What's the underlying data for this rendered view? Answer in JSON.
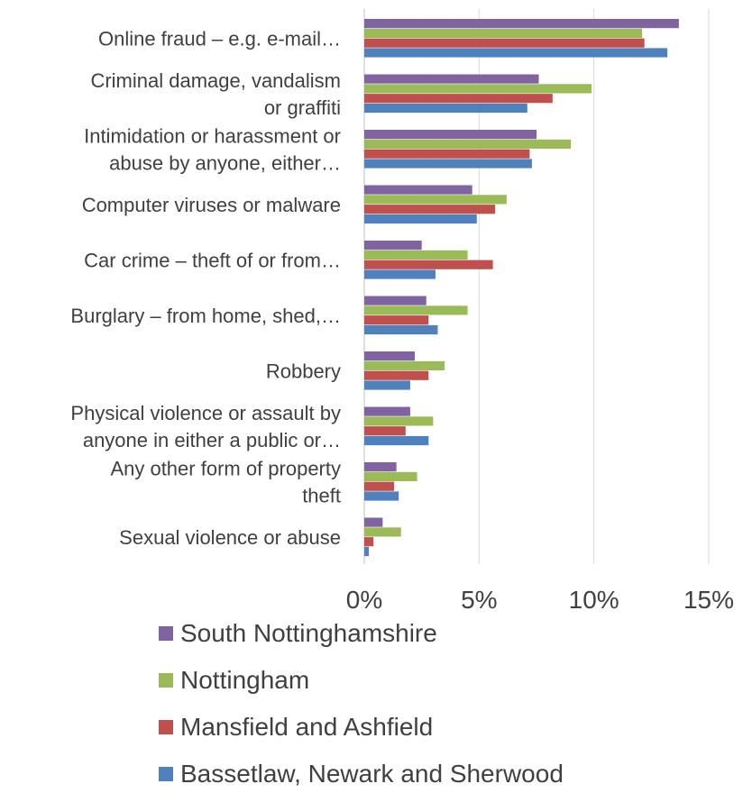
{
  "chart_data": {
    "type": "bar",
    "orientation": "horizontal",
    "categories": [
      [
        "Online fraud – e.g. e-mail…"
      ],
      [
        "Criminal damage, vandalism",
        "or graffiti"
      ],
      [
        "Intimidation or harassment or",
        "abuse by anyone, either…"
      ],
      [
        "Computer viruses or malware"
      ],
      [
        "Car crime – theft of or from…"
      ],
      [
        "Burglary – from home, shed,…"
      ],
      [
        "Robbery"
      ],
      [
        "Physical violence or assault by",
        "anyone in either a public or…"
      ],
      [
        "Any other form of property",
        "theft"
      ],
      [
        "Sexual violence or abuse"
      ]
    ],
    "series": [
      {
        "name": "South Nottinghamshire",
        "color": "#8064A2",
        "values": [
          13.7,
          7.6,
          7.5,
          4.7,
          2.5,
          2.7,
          2.2,
          2.0,
          1.4,
          0.8
        ]
      },
      {
        "name": "Nottingham",
        "color": "#9BBB59",
        "values": [
          12.1,
          9.9,
          9.0,
          6.2,
          4.5,
          4.5,
          3.5,
          3.0,
          2.3,
          1.6
        ]
      },
      {
        "name": "Mansfield and Ashfield",
        "color": "#C0504D",
        "values": [
          12.2,
          8.2,
          7.2,
          5.7,
          5.6,
          2.8,
          2.8,
          1.8,
          1.3,
          0.4
        ]
      },
      {
        "name": "Bassetlaw, Newark and Sherwood",
        "color": "#4F81BD",
        "values": [
          13.2,
          7.1,
          7.3,
          4.9,
          3.1,
          3.2,
          2.0,
          2.8,
          1.5,
          0.2
        ]
      }
    ],
    "x_ticks": [
      "0%",
      "5%",
      "10%",
      "15%"
    ],
    "xlim": [
      0,
      15
    ],
    "grid": true,
    "legend_position": "bottom"
  }
}
